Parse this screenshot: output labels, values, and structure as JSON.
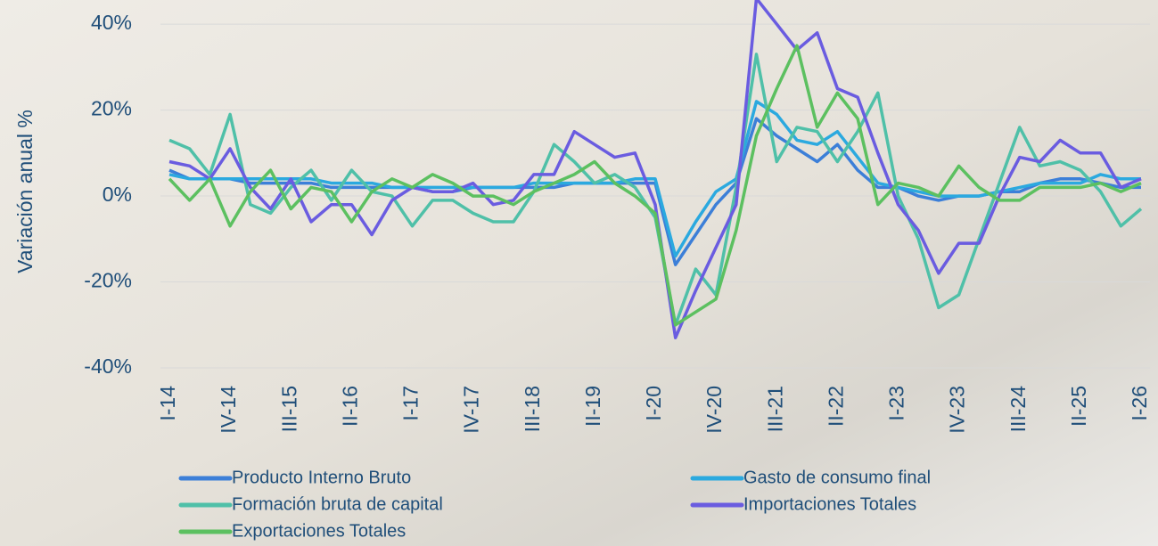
{
  "chart_data": {
    "type": "line",
    "y_label": "Variación anual %",
    "categories": [
      "I-14",
      null,
      null,
      "IV-14",
      null,
      null,
      "III-15",
      null,
      null,
      "II-16",
      null,
      null,
      "I-17",
      null,
      null,
      "IV-17",
      null,
      null,
      "III-18",
      null,
      null,
      "II-19",
      null,
      null,
      "I-20",
      null,
      null,
      "IV-20",
      null,
      null,
      "III-21",
      null,
      null,
      "II-22",
      null,
      null,
      "I-23",
      null,
      null,
      "IV-23",
      null,
      null,
      "III-24",
      null,
      null,
      "II-25",
      null,
      null,
      "I-26"
    ],
    "ylim": [
      -40,
      45
    ],
    "yticks": [
      {
        "value": -40,
        "label": "-40%"
      },
      {
        "value": -20,
        "label": "-20%"
      },
      {
        "value": 0,
        "label": "0%"
      },
      {
        "value": 20,
        "label": "20%"
      },
      {
        "value": 40,
        "label": "40%"
      }
    ],
    "grid": true,
    "series": [
      {
        "name": "Producto Interno Bruto",
        "color": "#3c7fd8",
        "values": [
          6,
          4,
          4,
          4,
          3,
          3,
          3,
          3,
          2,
          2,
          2,
          2,
          2,
          1,
          1,
          2,
          2,
          2,
          2,
          2,
          3,
          3,
          3,
          3,
          3,
          -16,
          -9,
          -2,
          3,
          18,
          14,
          11,
          8,
          12,
          6,
          2,
          2,
          0,
          -1,
          0,
          0,
          1,
          1,
          3,
          4,
          4,
          3,
          2,
          2
        ]
      },
      {
        "name": "Gasto de consumo final",
        "color": "#2ba9df",
        "values": [
          5,
          4,
          4,
          4,
          4,
          4,
          4,
          4,
          3,
          3,
          3,
          2,
          2,
          2,
          2,
          2,
          2,
          2,
          3,
          3,
          3,
          3,
          3,
          4,
          4,
          -14,
          -6,
          1,
          4,
          22,
          19,
          13,
          12,
          15,
          9,
          3,
          2,
          1,
          0,
          0,
          0,
          1,
          2,
          3,
          3,
          3,
          5,
          4,
          4
        ]
      },
      {
        "name": "Formación bruta de capital",
        "color": "#4fc0a8",
        "values": [
          13,
          11,
          5,
          19,
          -2,
          -4,
          2,
          6,
          -1,
          6,
          1,
          0,
          -7,
          -1,
          -1,
          -4,
          -6,
          -6,
          1,
          12,
          8,
          3,
          5,
          2,
          -5,
          -30,
          -17,
          -23,
          2,
          33,
          8,
          16,
          15,
          8,
          15,
          24,
          0,
          -10,
          -26,
          -23,
          -10,
          3,
          16,
          7,
          8,
          6,
          1,
          -7,
          -3
        ]
      },
      {
        "name": "Importaciones Totales",
        "color": "#6a5ce0",
        "values": [
          8,
          7,
          4,
          11,
          2,
          -3,
          4,
          -6,
          -2,
          -2,
          -9,
          -1,
          2,
          1,
          1,
          3,
          -2,
          -1,
          5,
          5,
          15,
          12,
          9,
          10,
          -2,
          -33,
          -22,
          -12,
          -2,
          46,
          40,
          34,
          38,
          25,
          23,
          10,
          -2,
          -8,
          -18,
          -11,
          -11,
          0,
          9,
          8,
          13,
          10,
          10,
          2,
          4
        ]
      },
      {
        "name": "Exportaciones  Totales",
        "color": "#5cc060",
        "values": [
          4,
          -1,
          4,
          -7,
          1,
          6,
          -3,
          2,
          1,
          -6,
          1,
          4,
          2,
          5,
          3,
          0,
          0,
          -2,
          1,
          3,
          5,
          8,
          3,
          0,
          -4,
          -30,
          -27,
          -24,
          -8,
          14,
          25,
          35,
          16,
          24,
          18,
          -2,
          3,
          2,
          0,
          7,
          2,
          -1,
          -1,
          2,
          2,
          2,
          3,
          1,
          3
        ]
      }
    ]
  }
}
